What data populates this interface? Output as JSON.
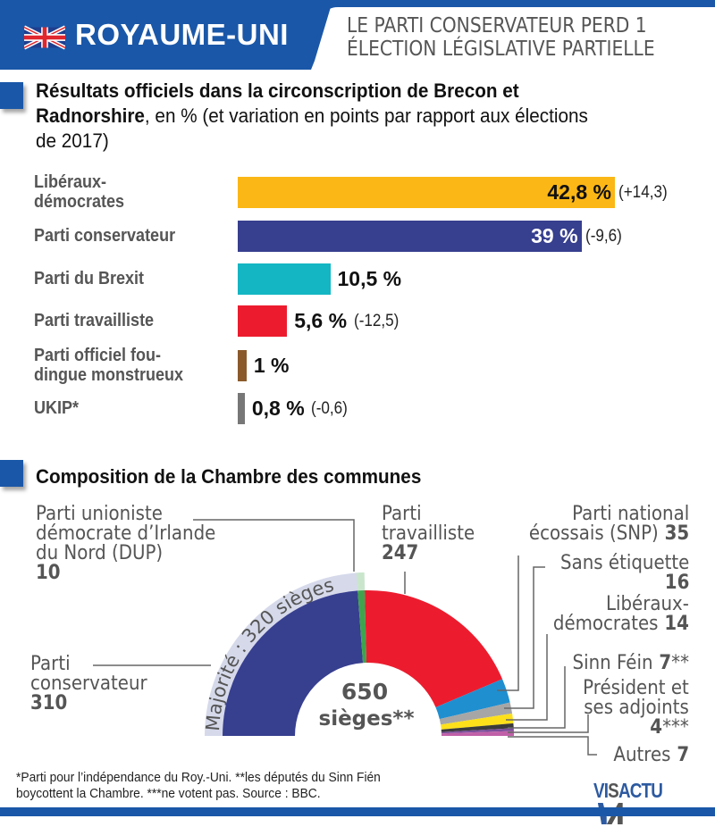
{
  "header": {
    "country": "ROYAUME-UNI",
    "flag_icon": "uk-flag-icon",
    "headline_line1": "LE PARTI CONSERVATEUR PERD 1",
    "headline_line2": "ÉLECTION LÉGISLATIVE PARTIELLE",
    "brand_color": "#1a57a8"
  },
  "section1": {
    "title_bold": "Résultats officiels dans la circonscription de Brecon et Radnorshire",
    "title_rest": ", en % (et variation en points par rapport aux élections de 2017)"
  },
  "section2": {
    "title": "Composition de la Chambre des communes"
  },
  "chart_data": [
    {
      "type": "bar",
      "orientation": "horizontal",
      "title": "Résultats officiels dans la circonscription de Brecon et Radnorshire, en % (et variation en points par rapport aux élections de 2017)",
      "categories": [
        "Libéraux-démocrates",
        "Parti conservateur",
        "Parti du Brexit",
        "Parti travailliste",
        "Parti officiel fou-dingue monstrueux",
        "UKIP*"
      ],
      "label_lines": [
        [
          "Libéraux-",
          "démocrates"
        ],
        [
          "Parti conservateur"
        ],
        [
          "Parti du Brexit"
        ],
        [
          "Parti travailliste"
        ],
        [
          "Parti officiel fou-",
          "dingue monstrueux"
        ],
        [
          "UKIP*"
        ]
      ],
      "values": [
        42.8,
        39,
        10.5,
        5.6,
        1,
        0.8
      ],
      "value_labels": [
        "42,8 %",
        "39 %",
        "10,5 %",
        "5,6 %",
        "1 %",
        "0,8 %"
      ],
      "changes": [
        "(+14,3)",
        "(-9,6)",
        "",
        "(-12,5)",
        "",
        "(-0,6)"
      ],
      "colors": [
        "#fbb716",
        "#373f8f",
        "#14b6c3",
        "#ec1c2e",
        "#8b5a2b",
        "#777777"
      ],
      "xlim": [
        0,
        42.8
      ],
      "unit": "%"
    },
    {
      "type": "pie",
      "variant": "hemicycle",
      "title": "Composition de la Chambre des communes",
      "total_seats": 650,
      "center_label_number": "650",
      "center_label_text": "sièges**",
      "majority_label": "Majorité : 320 sièges",
      "majority_seats": 320,
      "series": [
        {
          "name": "Parti conservateur",
          "value": 310,
          "color": "#373f8f"
        },
        {
          "name": "Parti unioniste démocrate d’Irlande du Nord (DUP)",
          "value": 10,
          "color": "#3fa34d"
        },
        {
          "name": "Parti travailliste",
          "value": 247,
          "color": "#ec1c2e"
        },
        {
          "name": "Parti national écossais (SNP)",
          "value": 35,
          "color": "#1f8fd0"
        },
        {
          "name": "Sans étiquette",
          "value": 16,
          "color": "#a6a6a6"
        },
        {
          "name": "Libéraux-démocrates",
          "value": 14,
          "color": "#fde01a"
        },
        {
          "name": "Sinn Féin",
          "value": 7,
          "color": "#3b3b3b"
        },
        {
          "name": "Président et ses adjoints",
          "value": 4,
          "color": "#7a4f9a"
        },
        {
          "name": "Autres",
          "value": 7,
          "color": "#c060a8"
        }
      ],
      "labels": {
        "dup": {
          "lines": [
            "Parti unioniste",
            "démocrate d’Irlande",
            "du Nord (DUP)"
          ],
          "value": "10"
        },
        "con": {
          "lines": [
            "Parti",
            "conservateur"
          ],
          "value": "310"
        },
        "lab": {
          "lines": [
            "Parti",
            "travailliste"
          ],
          "value": "247"
        },
        "snp": {
          "lines": [
            "Parti national",
            "écossais (SNP)"
          ],
          "value": "35"
        },
        "ind": {
          "lines": [
            "Sans étiquette"
          ],
          "value": "16"
        },
        "ld": {
          "lines": [
            "Libéraux-",
            "démocrates"
          ],
          "value": "14"
        },
        "sf": {
          "lines": [
            "Sinn Féin"
          ],
          "value": "7",
          "suffix": "**"
        },
        "spk": {
          "lines": [
            "Président et",
            "ses adjoints"
          ],
          "value": "4",
          "suffix": "***"
        },
        "oth": {
          "lines": [
            "Autres"
          ],
          "value": "7"
        }
      }
    }
  ],
  "footer": {
    "footnote_line1": "*Parti pour l’indépendance du Roy.-Uni. **les députés du Sinn Fién",
    "footnote_line2": "boycottent la Chambre.  ***ne votent pas.  Source : BBC.",
    "logo_part1": "VI",
    "logo_part2": "S",
    "logo_part3": "ACTU",
    "logo_icon": "visactu-logo-icon"
  }
}
